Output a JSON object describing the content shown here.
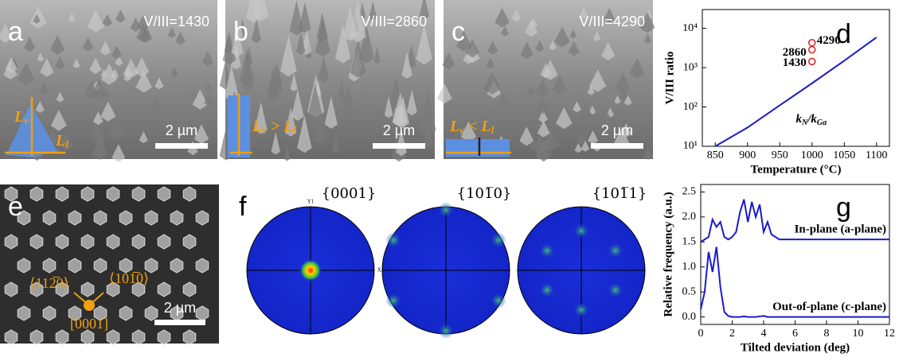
{
  "panels": [
    {
      "letter": "a",
      "ratio": "V/III=1430",
      "scale_bar": "2 µm",
      "annotations": [
        [
          "L",
          "v"
        ],
        [
          "L",
          "l"
        ]
      ]
    },
    {
      "letter": "b",
      "ratio": "V/III=2860",
      "scale_bar": "2 µm",
      "annotations": [
        [
          "L",
          "v",
          " > L",
          "l"
        ]
      ]
    },
    {
      "letter": "c",
      "ratio": "V/III=4290",
      "scale_bar": "2 µm",
      "annotations": [
        [
          "L",
          "v",
          " < L",
          "l"
        ]
      ]
    },
    {
      "letter": "e",
      "scale_bar": "2 µm",
      "directions": [
        "⟨112̅0⟩",
        "⟨101̅0⟩",
        "[0001]"
      ]
    },
    {
      "letter": "f",
      "pole_figures": [
        "{0001}",
        "{101̅0}",
        "{101̅1}"
      ],
      "axis_labels": [
        "Y1",
        "X1"
      ]
    }
  ],
  "chart_data": [
    {
      "type": "line",
      "panel_label": "d",
      "xlabel": "Temperature (°C)",
      "ylabel": "V/III ratio",
      "x": [
        850,
        900,
        950,
        1000,
        1050,
        1100
      ],
      "series": [
        {
          "color": "#1a1acc",
          "values": [
            10,
            30,
            110,
            400,
            1500,
            5900
          ]
        }
      ],
      "annotation_parts": [
        "k",
        "N",
        "/k",
        "Ga"
      ],
      "markers": {
        "x": [
          1000,
          1000,
          1000
        ],
        "values": [
          1430,
          2860,
          4290
        ],
        "color": "#e02020"
      },
      "xlim": [
        830,
        1120
      ],
      "xticks": [
        850,
        900,
        950,
        1000,
        1050,
        1100
      ],
      "ylim": [
        10,
        30000
      ],
      "log_y": true,
      "yticks": [
        {
          "value": 10,
          "label": "10¹"
        },
        {
          "value": 100,
          "label": "10²"
        },
        {
          "value": 1000,
          "label": "10³"
        },
        {
          "value": 10000,
          "label": "10⁴"
        }
      ]
    },
    {
      "type": "line",
      "panel_label": "g",
      "xlabel": "Tilted deviation (deg)",
      "ylabel": "Relative frequency (a.u.)",
      "x": [
        0,
        0.25,
        0.5,
        0.75,
        1,
        1.25,
        1.5,
        1.75,
        2,
        2.25,
        2.5,
        2.75,
        3,
        3.25,
        3.5,
        3.75,
        4,
        4.25,
        4.5,
        4.75,
        5,
        6,
        8,
        10,
        12
      ],
      "series": [
        {
          "name": "In-plane (a-plane)",
          "color": "#1a1acc",
          "values": [
            1.5,
            1.55,
            1.6,
            1.95,
            1.8,
            1.9,
            1.6,
            1.55,
            1.6,
            1.7,
            2.1,
            2.35,
            1.9,
            2.3,
            2.0,
            2.25,
            1.7,
            1.9,
            1.65,
            1.6,
            1.55,
            1.55,
            1.55,
            1.55,
            1.55
          ]
        },
        {
          "name": "Out-of-plane (c-plane)",
          "color": "#1a1acc",
          "values": [
            0.15,
            0.5,
            1.3,
            0.9,
            1.4,
            0.6,
            0.1,
            0.02,
            0,
            0,
            0,
            0.01,
            0,
            0,
            0,
            0.01,
            0.02,
            0,
            0,
            0,
            0,
            0,
            0,
            0,
            0
          ]
        }
      ],
      "xlim": [
        0,
        12
      ],
      "xticks": [
        0,
        2,
        4,
        6,
        8,
        10,
        12
      ],
      "ylim": [
        -0.15,
        2.65
      ],
      "yticks": [
        {
          "value": 0,
          "label": "0.0"
        },
        0.5,
        {
          "value": 1,
          "label": "1.0"
        },
        1.5,
        {
          "value": 2,
          "label": "2.0"
        },
        2.5
      ]
    }
  ]
}
